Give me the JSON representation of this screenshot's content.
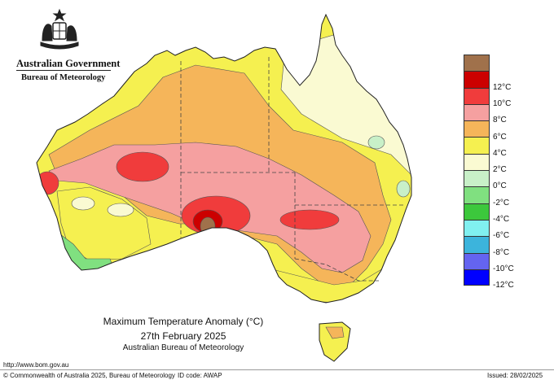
{
  "header": {
    "government": "Australian Government",
    "bureau": "Bureau of Meteorology"
  },
  "map": {
    "title": "Maximum Temperature Anomaly (°C)",
    "date": "27th February 2025",
    "agency": "Australian Bureau of Meteorology"
  },
  "legend": {
    "items": [
      {
        "label": "",
        "color": "#a0714b"
      },
      {
        "label": "12°C",
        "color": "#cc0000"
      },
      {
        "label": "10°C",
        "color": "#f03c3c"
      },
      {
        "label": "8°C",
        "color": "#f5a0a0"
      },
      {
        "label": "6°C",
        "color": "#f5b55a"
      },
      {
        "label": "4°C",
        "color": "#f5f050"
      },
      {
        "label": "2°C",
        "color": "#fafad2"
      },
      {
        "label": "0°C",
        "color": "#c8f0c8"
      },
      {
        "label": "-2°C",
        "color": "#80e080"
      },
      {
        "label": "-4°C",
        "color": "#3cc83c"
      },
      {
        "label": "-6°C",
        "color": "#80f0f0"
      },
      {
        "label": "-8°C",
        "color": "#3cb4dc"
      },
      {
        "label": "-10°C",
        "color": "#6464f0"
      },
      {
        "label": "-12°C",
        "color": "#0000ff"
      }
    ]
  },
  "footer": {
    "url": "http://www.bom.gov.au",
    "copyright": "© Commonwealth of Australia 2025, Bureau of Meteorology",
    "id_code": "ID code: AWAP",
    "issued": "Issued: 28/02/2025"
  }
}
